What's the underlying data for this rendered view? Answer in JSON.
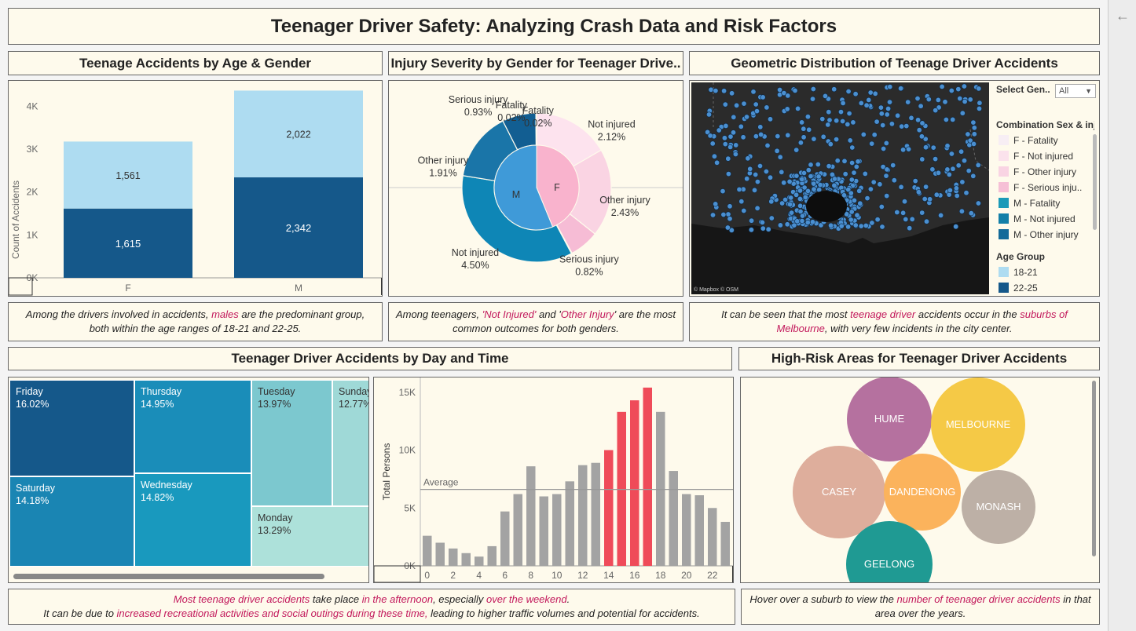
{
  "dashboard": {
    "title": "Teenager Driver Safety: Analyzing Crash Data and Risk Factors"
  },
  "age_gender": {
    "title": "Teenage Accidents by Age & Gender",
    "caption": {
      "p1": "Among the drivers involved in accidents, ",
      "h1": "males",
      "p2": " are the predominant group, both within the age ranges of 18-21 and 22-25."
    }
  },
  "severity": {
    "title": "Injury Severity by Gender for Teenager Drive..",
    "caption": {
      "p1": "Among teenagers, ",
      "h1": "'Not Injured'",
      "p2": " and '",
      "h2": "Other Injury",
      "p3": "' are the most common outcomes for both genders."
    }
  },
  "geo": {
    "title": "Geometric Distribution of Teenage Driver Accidents",
    "select_label": "Select Gen..",
    "select_value": "All",
    "legend1_title": "Combination Sex & inj",
    "legend1": [
      {
        "label": "F - Fatality",
        "color": "#f7eef4"
      },
      {
        "label": "F - Not injured",
        "color": "#fbe2ec"
      },
      {
        "label": "F - Other injury",
        "color": "#f9d4e3"
      },
      {
        "label": "F - Serious inju..",
        "color": "#f6c0d6"
      },
      {
        "label": "M - Fatality",
        "color": "#1b9ab8"
      },
      {
        "label": "M - Not injured",
        "color": "#137fa8"
      },
      {
        "label": "M - Other injury",
        "color": "#136a99"
      }
    ],
    "legend2_title": "Age Group",
    "legend2": [
      {
        "label": "18-21",
        "color": "#aedcf1"
      },
      {
        "label": "22-25",
        "color": "#15588a"
      }
    ],
    "attribution": "© Mapbox © OSM",
    "caption": {
      "p1": "It can be seen that the most ",
      "h1": "teenage driver",
      "p2": " accidents occur in the ",
      "h2": "suburbs of Melbourne",
      "p3": ", with very few incidents in the city center."
    }
  },
  "daytime": {
    "title": "Teenager Driver Accidents by Day and Time",
    "average_label": "Average",
    "caption": {
      "h1": "Most teenage driver accidents",
      "p1": " take place ",
      "h2": "in the afternoon",
      "p2": ", especially ",
      "h3": "over the weekend",
      "p3": ".",
      "p4": "It can be due to ",
      "h4": "increased recreational activities and social outings during these time,",
      "p5": " leading to higher traffic volumes and potential for accidents."
    }
  },
  "risk": {
    "title": "High-Risk Areas for Teenager Driver Accidents",
    "bubbles": [
      {
        "name": "HUME",
        "color": "#b5719f"
      },
      {
        "name": "MELBOURNE",
        "color": "#f5c946"
      },
      {
        "name": "CASEY",
        "color": "#deae9c"
      },
      {
        "name": "DANDENONG",
        "color": "#fbb35c"
      },
      {
        "name": "MONASH",
        "color": "#bdb0a6"
      },
      {
        "name": "GEELONG",
        "color": "#1f9a93"
      }
    ],
    "caption": {
      "p1": "Hover over a suburb to view the ",
      "h1": "number of teenager driver accidents",
      "p2": " in that area over the years."
    }
  },
  "chart_data": [
    {
      "type": "bar",
      "title": "Teenage Accidents by Age & Gender",
      "stacked": true,
      "categories": [
        "F",
        "M"
      ],
      "ylabel": "Count of Accidents",
      "yticks": [
        "0K",
        "1K",
        "2K",
        "3K",
        "4K"
      ],
      "ylim": [
        0,
        4500
      ],
      "series": [
        {
          "name": "22-25",
          "color": "#15588a",
          "values": [
            1615,
            2342
          ],
          "labels": [
            "1,615",
            "2,342"
          ]
        },
        {
          "name": "18-21",
          "color": "#aedcf1",
          "values": [
            1561,
            2022
          ],
          "labels": [
            "1,561",
            "2,022"
          ]
        }
      ]
    },
    {
      "type": "pie",
      "title": "Injury Severity by Gender for Teenager Drive..",
      "inner": [
        {
          "name": "M",
          "value": 56.2,
          "color": "#3f9ad8"
        },
        {
          "name": "F",
          "value": 43.8,
          "color": "#f9b3cd"
        }
      ],
      "outer": [
        {
          "name": "Not injured",
          "pct": "2.12%",
          "value": 2.12,
          "color": "#fde3ee"
        },
        {
          "name": "Other injury",
          "pct": "2.43%",
          "value": 2.43,
          "color": "#fad4e3"
        },
        {
          "name": "Serious injury",
          "pct": "0.82%",
          "value": 0.82,
          "color": "#f6bcd5"
        },
        {
          "name": "Fatality",
          "pct": "0.02%",
          "value": 0.02,
          "color": "#e07aa7"
        },
        {
          "name": "Not injured",
          "pct": "4.50%",
          "value": 4.5,
          "color": "#0e86b6"
        },
        {
          "name": "Other injury",
          "pct": "1.91%",
          "value": 1.91,
          "color": "#1a75a8"
        },
        {
          "name": "Serious injury",
          "pct": "0.93%",
          "value": 0.93,
          "color": "#125e92"
        },
        {
          "name": "Fatality",
          "pct": "0.02%",
          "value": 0.02,
          "color": "#0b3f6e"
        }
      ]
    },
    {
      "type": "treemap",
      "title": "Teenager Driver Accidents by Day",
      "items": [
        {
          "day": "Friday",
          "pct": "16.02%",
          "color": "#15588a"
        },
        {
          "day": "Thursday",
          "pct": "14.95%",
          "color": "#1a8db9"
        },
        {
          "day": "Saturday",
          "pct": "14.18%",
          "color": "#1a85b3"
        },
        {
          "day": "Wednesday",
          "pct": "14.82%",
          "color": "#1999be"
        },
        {
          "day": "Tuesday",
          "pct": "13.97%",
          "color": "#7cc8cf"
        },
        {
          "day": "Sunday",
          "pct": "12.77%",
          "color": "#9fd9d7"
        },
        {
          "day": "Monday",
          "pct": "13.29%",
          "color": "#ade1da"
        }
      ]
    },
    {
      "type": "bar",
      "title": "Teenager Driver Accidents by Time",
      "ylabel": "Total Persons",
      "x": [
        0,
        1,
        2,
        3,
        4,
        5,
        6,
        7,
        8,
        9,
        10,
        11,
        12,
        13,
        14,
        15,
        16,
        17,
        18,
        19,
        20,
        21,
        22,
        23
      ],
      "xticks": [
        "0",
        "2",
        "4",
        "6",
        "8",
        "10",
        "12",
        "14",
        "16",
        "18",
        "20",
        "22"
      ],
      "yticks": [
        "0K",
        "5K",
        "10K",
        "15K"
      ],
      "ylim": [
        0,
        16000
      ],
      "average": 6600,
      "values": [
        2600,
        2000,
        1500,
        1100,
        800,
        1700,
        4700,
        6200,
        8600,
        6000,
        6200,
        7300,
        8700,
        8900,
        10000,
        13300,
        14300,
        15400,
        13300,
        8200,
        6200,
        6100,
        5000,
        3800
      ],
      "highlight": [
        14,
        15,
        16,
        17
      ],
      "colors": {
        "normal": "#a3a3a3",
        "highlight": "#ef4b59"
      }
    }
  ]
}
